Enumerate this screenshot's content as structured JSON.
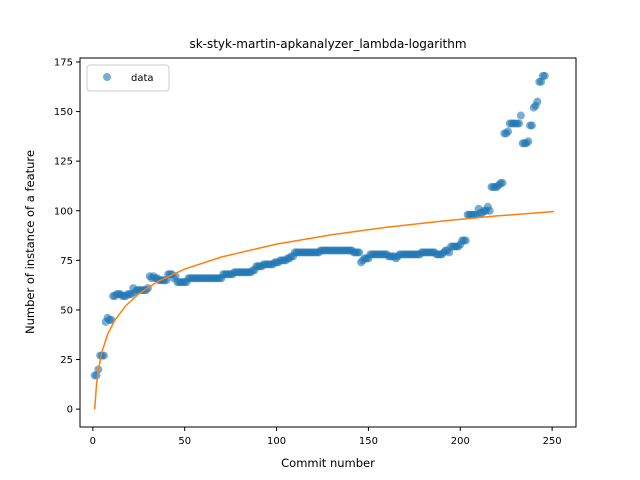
{
  "chart_data": {
    "type": "scatter",
    "title": "sk-styk-martin-apkanalyzer_lambda-logarithm",
    "xlabel": "Commit number",
    "ylabel": "Number of instance of a feature",
    "xlim": [
      -7,
      263
    ],
    "ylim": [
      -9,
      177
    ],
    "xticks": [
      0,
      50,
      100,
      150,
      200,
      250
    ],
    "yticks": [
      0,
      25,
      50,
      75,
      100,
      125,
      150,
      175
    ],
    "legend": {
      "position": "top-left",
      "entries": [
        "data"
      ]
    },
    "grid": false,
    "colors": {
      "data": "#1f77b4",
      "fit": "#ff7f0e"
    },
    "series": [
      {
        "name": "data",
        "kind": "scatter",
        "points": [
          [
            1,
            17
          ],
          [
            2,
            17
          ],
          [
            3,
            20
          ],
          [
            4,
            27
          ],
          [
            5,
            27
          ],
          [
            6,
            27
          ],
          [
            7,
            44
          ],
          [
            8,
            46
          ],
          [
            9,
            45
          ],
          [
            10,
            45
          ],
          [
            11,
            57
          ],
          [
            12,
            57
          ],
          [
            13,
            58
          ],
          [
            14,
            58
          ],
          [
            15,
            58
          ],
          [
            16,
            57
          ],
          [
            17,
            57
          ],
          [
            18,
            57
          ],
          [
            19,
            58
          ],
          [
            20,
            58
          ],
          [
            21,
            58
          ],
          [
            22,
            61
          ],
          [
            23,
            59
          ],
          [
            24,
            60
          ],
          [
            25,
            60
          ],
          [
            26,
            60
          ],
          [
            27,
            60
          ],
          [
            28,
            60
          ],
          [
            29,
            60
          ],
          [
            30,
            61
          ],
          [
            31,
            67
          ],
          [
            32,
            66
          ],
          [
            33,
            67
          ],
          [
            34,
            66
          ],
          [
            35,
            66
          ],
          [
            36,
            65
          ],
          [
            37,
            65
          ],
          [
            38,
            65
          ],
          [
            39,
            65
          ],
          [
            40,
            65
          ],
          [
            41,
            68
          ],
          [
            42,
            68
          ],
          [
            43,
            68
          ],
          [
            44,
            66
          ],
          [
            45,
            67
          ],
          [
            46,
            64
          ],
          [
            47,
            64
          ],
          [
            48,
            64
          ],
          [
            49,
            64
          ],
          [
            50,
            64
          ],
          [
            51,
            64
          ],
          [
            52,
            66
          ],
          [
            53,
            66
          ],
          [
            54,
            66
          ],
          [
            55,
            66
          ],
          [
            56,
            66
          ],
          [
            57,
            66
          ],
          [
            58,
            66
          ],
          [
            59,
            66
          ],
          [
            60,
            66
          ],
          [
            61,
            66
          ],
          [
            62,
            66
          ],
          [
            63,
            66
          ],
          [
            64,
            66
          ],
          [
            65,
            66
          ],
          [
            66,
            66
          ],
          [
            67,
            66
          ],
          [
            68,
            66
          ],
          [
            69,
            66
          ],
          [
            70,
            66
          ],
          [
            71,
            68
          ],
          [
            72,
            68
          ],
          [
            73,
            68
          ],
          [
            74,
            68
          ],
          [
            75,
            68
          ],
          [
            76,
            68
          ],
          [
            77,
            69
          ],
          [
            78,
            69
          ],
          [
            79,
            69
          ],
          [
            80,
            69
          ],
          [
            81,
            69
          ],
          [
            82,
            69
          ],
          [
            83,
            69
          ],
          [
            84,
            69
          ],
          [
            85,
            69
          ],
          [
            86,
            69
          ],
          [
            87,
            70
          ],
          [
            88,
            70
          ],
          [
            89,
            72
          ],
          [
            90,
            72
          ],
          [
            91,
            72
          ],
          [
            92,
            72
          ],
          [
            93,
            73
          ],
          [
            94,
            73
          ],
          [
            95,
            73
          ],
          [
            96,
            73
          ],
          [
            97,
            73
          ],
          [
            98,
            73
          ],
          [
            99,
            74
          ],
          [
            100,
            74
          ],
          [
            101,
            74
          ],
          [
            102,
            75
          ],
          [
            103,
            75
          ],
          [
            104,
            75
          ],
          [
            105,
            75
          ],
          [
            106,
            76
          ],
          [
            107,
            76
          ],
          [
            108,
            77
          ],
          [
            109,
            77
          ],
          [
            110,
            79
          ],
          [
            111,
            79
          ],
          [
            112,
            79
          ],
          [
            113,
            79
          ],
          [
            114,
            79
          ],
          [
            115,
            79
          ],
          [
            116,
            79
          ],
          [
            117,
            79
          ],
          [
            118,
            79
          ],
          [
            119,
            79
          ],
          [
            120,
            79
          ],
          [
            121,
            79
          ],
          [
            122,
            79
          ],
          [
            123,
            79
          ],
          [
            124,
            80
          ],
          [
            125,
            80
          ],
          [
            126,
            80
          ],
          [
            127,
            80
          ],
          [
            128,
            80
          ],
          [
            129,
            80
          ],
          [
            130,
            80
          ],
          [
            131,
            80
          ],
          [
            132,
            80
          ],
          [
            133,
            80
          ],
          [
            134,
            80
          ],
          [
            135,
            80
          ],
          [
            136,
            80
          ],
          [
            137,
            80
          ],
          [
            138,
            80
          ],
          [
            139,
            80
          ],
          [
            140,
            80
          ],
          [
            141,
            80
          ],
          [
            142,
            79
          ],
          [
            143,
            79
          ],
          [
            144,
            79
          ],
          [
            145,
            79
          ],
          [
            146,
            74
          ],
          [
            147,
            75
          ],
          [
            148,
            76
          ],
          [
            149,
            76
          ],
          [
            150,
            76
          ],
          [
            151,
            78
          ],
          [
            152,
            78
          ],
          [
            153,
            78
          ],
          [
            154,
            78
          ],
          [
            155,
            78
          ],
          [
            156,
            78
          ],
          [
            157,
            78
          ],
          [
            158,
            78
          ],
          [
            159,
            78
          ],
          [
            160,
            78
          ],
          [
            161,
            77
          ],
          [
            162,
            77
          ],
          [
            163,
            77
          ],
          [
            164,
            77
          ],
          [
            165,
            76
          ],
          [
            166,
            77
          ],
          [
            167,
            78
          ],
          [
            168,
            78
          ],
          [
            169,
            78
          ],
          [
            170,
            78
          ],
          [
            171,
            78
          ],
          [
            172,
            78
          ],
          [
            173,
            78
          ],
          [
            174,
            78
          ],
          [
            175,
            78
          ],
          [
            176,
            78
          ],
          [
            177,
            78
          ],
          [
            178,
            78
          ],
          [
            179,
            79
          ],
          [
            180,
            79
          ],
          [
            181,
            79
          ],
          [
            182,
            79
          ],
          [
            183,
            79
          ],
          [
            184,
            79
          ],
          [
            185,
            79
          ],
          [
            186,
            79
          ],
          [
            187,
            78
          ],
          [
            188,
            78
          ],
          [
            189,
            78
          ],
          [
            190,
            78
          ],
          [
            191,
            79
          ],
          [
            192,
            80
          ],
          [
            193,
            80
          ],
          [
            194,
            79
          ],
          [
            195,
            82
          ],
          [
            196,
            82
          ],
          [
            197,
            82
          ],
          [
            198,
            82
          ],
          [
            199,
            82
          ],
          [
            200,
            83
          ],
          [
            201,
            85
          ],
          [
            202,
            85
          ],
          [
            203,
            85
          ],
          [
            204,
            98
          ],
          [
            205,
            98
          ],
          [
            206,
            98
          ],
          [
            207,
            98
          ],
          [
            208,
            98
          ],
          [
            209,
            98
          ],
          [
            210,
            101
          ],
          [
            211,
            99
          ],
          [
            212,
            99
          ],
          [
            213,
            100
          ],
          [
            214,
            100
          ],
          [
            215,
            102
          ],
          [
            216,
            100
          ],
          [
            217,
            112
          ],
          [
            218,
            112
          ],
          [
            219,
            112
          ],
          [
            220,
            112
          ],
          [
            221,
            113
          ],
          [
            222,
            114
          ],
          [
            223,
            114
          ],
          [
            224,
            139
          ],
          [
            225,
            139
          ],
          [
            226,
            140
          ],
          [
            227,
            144
          ],
          [
            228,
            144
          ],
          [
            229,
            144
          ],
          [
            230,
            144
          ],
          [
            231,
            144
          ],
          [
            232,
            144
          ],
          [
            233,
            148
          ],
          [
            234,
            134
          ],
          [
            235,
            134
          ],
          [
            236,
            134
          ],
          [
            237,
            135
          ],
          [
            238,
            143
          ],
          [
            239,
            143
          ],
          [
            240,
            152
          ],
          [
            241,
            153
          ],
          [
            242,
            155
          ],
          [
            243,
            165
          ],
          [
            244,
            165
          ],
          [
            245,
            168
          ],
          [
            246,
            168
          ]
        ]
      },
      {
        "name": "",
        "kind": "line",
        "model": "logarithm",
        "points": [
          [
            1,
            0
          ],
          [
            2,
            12.5
          ],
          [
            3,
            19.9
          ],
          [
            5,
            29.1
          ],
          [
            8,
            37.6
          ],
          [
            12,
            44.9
          ],
          [
            18,
            52.2
          ],
          [
            25,
            58.1
          ],
          [
            35,
            64.2
          ],
          [
            50,
            70.6
          ],
          [
            70,
            76.7
          ],
          [
            100,
            83.2
          ],
          [
            130,
            87.9
          ],
          [
            160,
            91.7
          ],
          [
            190,
            94.8
          ],
          [
            220,
            97.4
          ],
          [
            251,
            99.6
          ]
        ]
      }
    ]
  }
}
